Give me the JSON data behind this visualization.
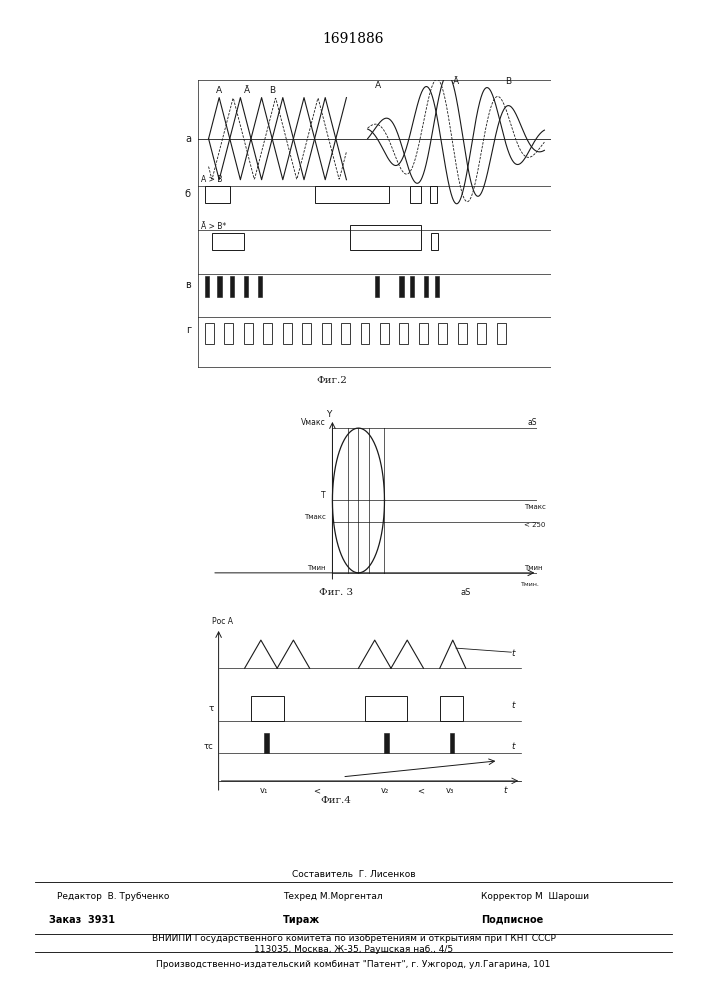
{
  "title": "1691886",
  "fig2_label": "Фиг.2",
  "fig3_label": "Фиг. 3",
  "fig4_label": "Фиг.4",
  "line_color": "#1a1a1a"
}
